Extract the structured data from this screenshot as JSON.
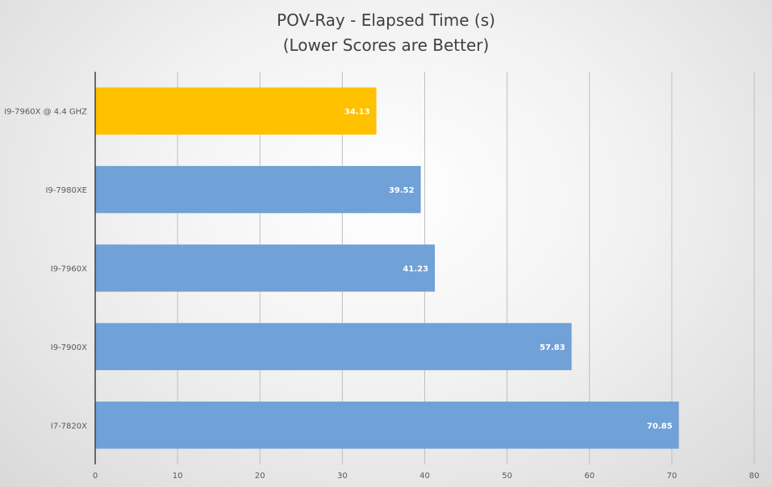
{
  "chart_data": {
    "type": "bar",
    "orientation": "horizontal",
    "title": "POV-Ray - Elapsed Time (s)",
    "subtitle": "(Lower Scores are Better)",
    "categories": [
      "I9-7960X @ 4.4 GHZ",
      "I9-7980XE",
      "I9-7960X",
      "I9-7900X",
      "I7-7820X"
    ],
    "values": [
      34.13,
      39.52,
      41.23,
      57.83,
      70.85
    ],
    "data_labels": [
      "34.13",
      "39.52",
      "41.23",
      "57.83",
      "70.85"
    ],
    "bar_colors": [
      "#FFC000",
      "#70A1D7",
      "#70A1D7",
      "#70A1D7",
      "#70A1D7"
    ],
    "xlim": [
      0,
      80
    ],
    "xticks": [
      "0",
      "10",
      "20",
      "30",
      "40",
      "50",
      "60",
      "70",
      "80"
    ],
    "grid": true,
    "xlabel": "",
    "ylabel": ""
  }
}
